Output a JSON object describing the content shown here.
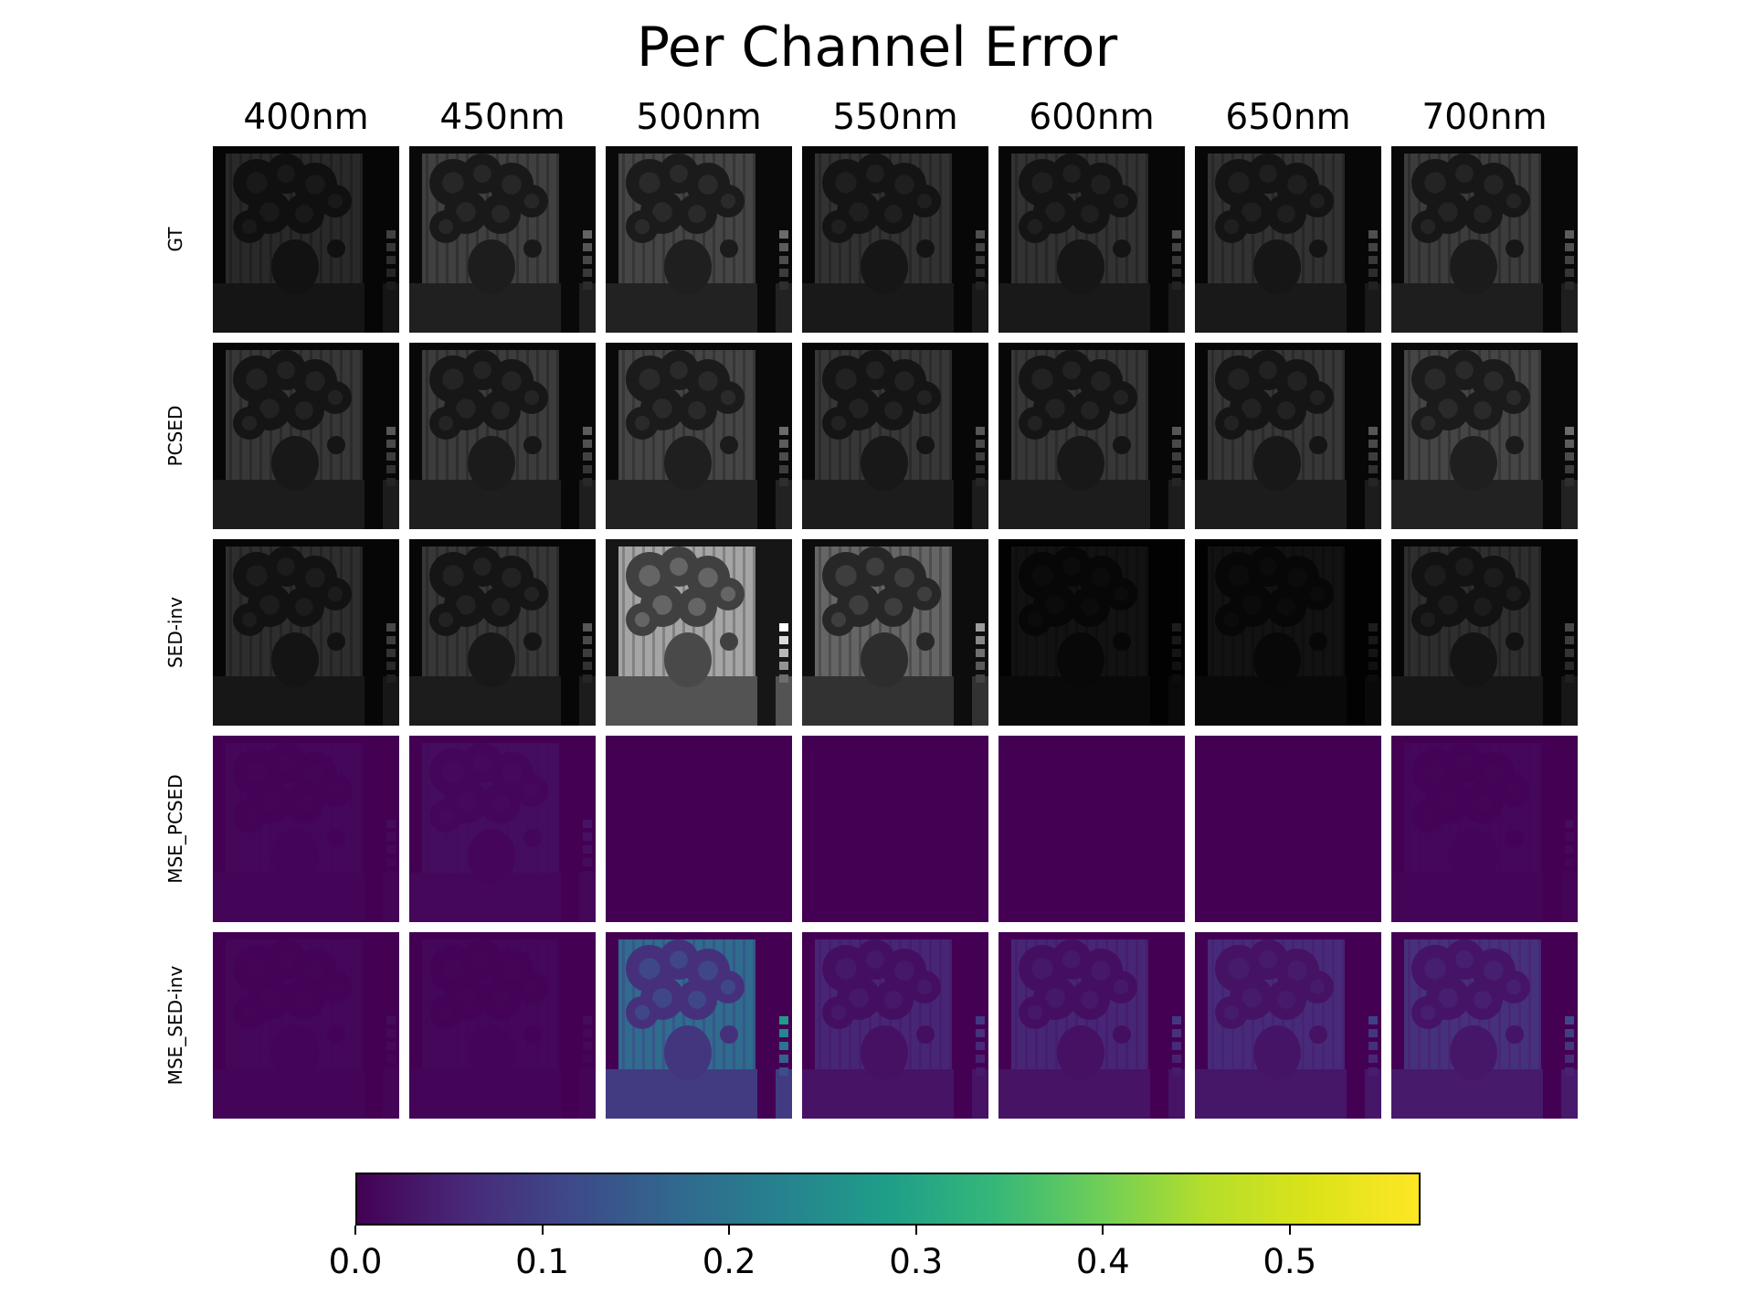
{
  "chart_data": {
    "type": "heatmap",
    "title": "Per Channel Error",
    "columns": [
      "400nm",
      "450nm",
      "500nm",
      "550nm",
      "600nm",
      "650nm",
      "700nm"
    ],
    "rows": [
      "GT",
      "PCSED",
      "SED-inv",
      "MSE_PCSED",
      "MSE_SED-inv"
    ],
    "row_kinds": [
      "grayscale",
      "grayscale",
      "grayscale",
      "viridis",
      "viridis"
    ],
    "panel_brightness": [
      [
        0.18,
        0.28,
        0.3,
        0.22,
        0.22,
        0.22,
        0.26
      ],
      [
        0.24,
        0.26,
        0.3,
        0.24,
        0.24,
        0.24,
        0.3
      ],
      [
        0.2,
        0.24,
        0.72,
        0.44,
        0.08,
        0.08,
        0.2
      ],
      [
        0.01,
        0.02,
        0.0,
        0.0,
        0.0,
        0.0,
        0.01
      ],
      [
        0.01,
        0.01,
        0.2,
        0.06,
        0.06,
        0.07,
        0.08
      ]
    ],
    "colorbar": {
      "colormap": "viridis",
      "vmin": 0.0,
      "vmax": 0.57,
      "orientation": "horizontal",
      "ticks": [
        0.0,
        0.1,
        0.2,
        0.3,
        0.4,
        0.5
      ],
      "tick_labels": [
        "0.0",
        "0.1",
        "0.2",
        "0.3",
        "0.4",
        "0.5"
      ]
    }
  }
}
